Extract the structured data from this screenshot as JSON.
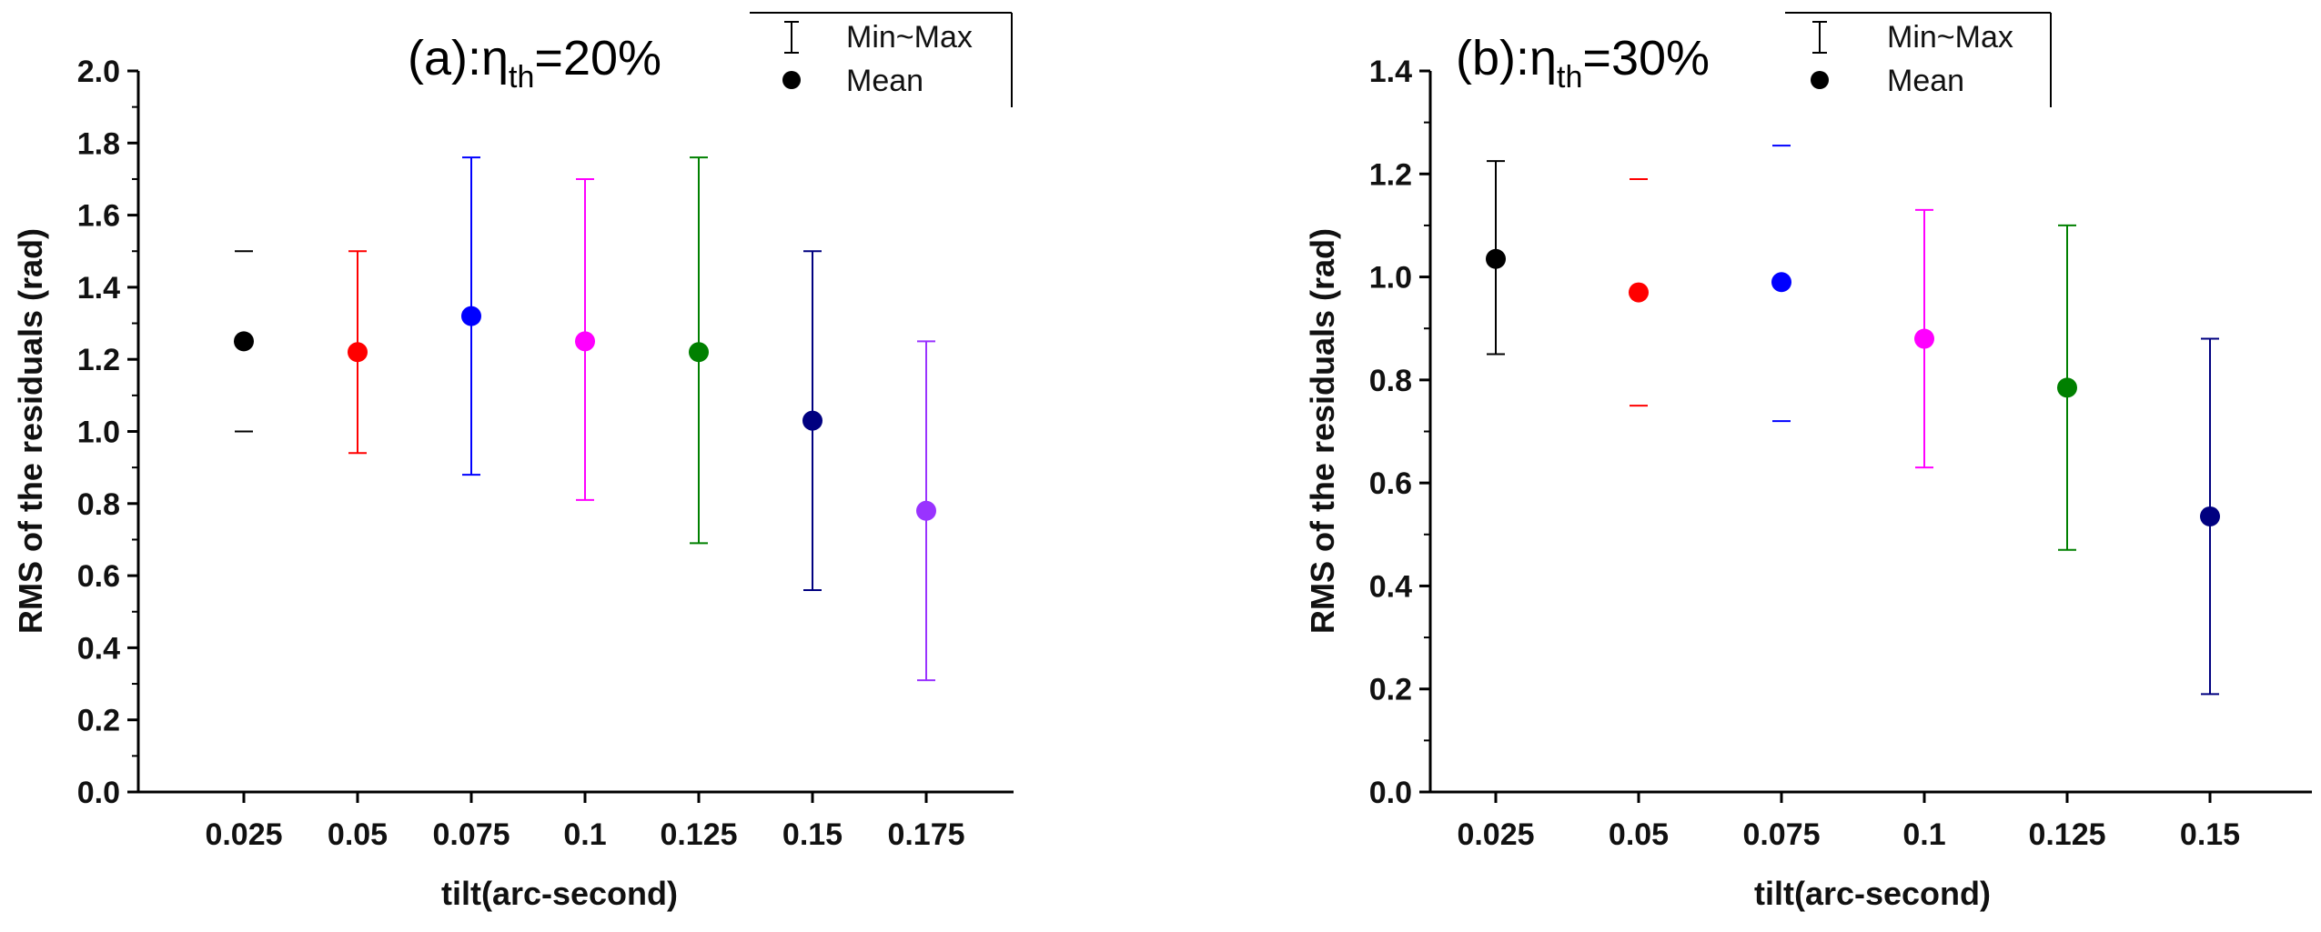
{
  "chart_data": [
    {
      "type": "scatter",
      "title_prefix": "(a):η",
      "title_sub": "th",
      "title_suffix": "=20%",
      "xlabel": "tilt(arc-second)",
      "ylabel": "RMS of the residuals (rad)",
      "categories": [
        "0.025",
        "0.05",
        "0.075",
        "0.1",
        "0.125",
        "0.15",
        "0.175"
      ],
      "ylim": [
        0,
        2.0
      ],
      "yticks": [
        "0.0",
        "0.2",
        "0.4",
        "0.6",
        "0.8",
        "1.0",
        "1.2",
        "1.4",
        "1.6",
        "1.8",
        "2.0"
      ],
      "legend": {
        "range_label": "Min~Max",
        "mean_label": "Mean",
        "position": "top-right"
      },
      "points": [
        {
          "x": "0.025",
          "mean": 1.25,
          "min": 1.0,
          "max": 1.5,
          "color": "#000000",
          "capsOnly": true
        },
        {
          "x": "0.05",
          "mean": 1.22,
          "min": 0.94,
          "max": 1.5,
          "color": "#ff0000",
          "capsOnly": false
        },
        {
          "x": "0.075",
          "mean": 1.32,
          "min": 0.88,
          "max": 1.76,
          "color": "#0000ff",
          "capsOnly": false
        },
        {
          "x": "0.1",
          "mean": 1.25,
          "min": 0.81,
          "max": 1.7,
          "color": "#ff00ff",
          "capsOnly": false
        },
        {
          "x": "0.125",
          "mean": 1.22,
          "min": 0.69,
          "max": 1.76,
          "color": "#008000",
          "capsOnly": false
        },
        {
          "x": "0.15",
          "mean": 1.03,
          "min": 0.56,
          "max": 1.5,
          "color": "#000080",
          "capsOnly": false
        },
        {
          "x": "0.175",
          "mean": 0.78,
          "min": 0.31,
          "max": 1.25,
          "color": "#9933ff",
          "capsOnly": false
        }
      ]
    },
    {
      "type": "scatter",
      "title_prefix": "(b):η",
      "title_sub": "th",
      "title_suffix": "=30%",
      "xlabel": "tilt(arc-second)",
      "ylabel": "RMS of the residuals (rad)",
      "categories": [
        "0.025",
        "0.05",
        "0.075",
        "0.1",
        "0.125",
        "0.15"
      ],
      "ylim": [
        0,
        1.4
      ],
      "yticks": [
        "0.0",
        "0.2",
        "0.4",
        "0.6",
        "0.8",
        "1.0",
        "1.2",
        "1.4"
      ],
      "legend": {
        "range_label": "Min~Max",
        "mean_label": "Mean",
        "position": "top-right"
      },
      "points": [
        {
          "x": "0.025",
          "mean": 1.035,
          "min": 0.85,
          "max": 1.225,
          "color": "#000000",
          "capsOnly": false
        },
        {
          "x": "0.05",
          "mean": 0.97,
          "min": 0.75,
          "max": 1.19,
          "color": "#ff0000",
          "capsOnly": true
        },
        {
          "x": "0.075",
          "mean": 0.99,
          "min": 0.72,
          "max": 1.255,
          "color": "#0000ff",
          "capsOnly": true
        },
        {
          "x": "0.1",
          "mean": 0.88,
          "min": 0.63,
          "max": 1.13,
          "color": "#ff00ff",
          "capsOnly": false
        },
        {
          "x": "0.125",
          "mean": 0.785,
          "min": 0.47,
          "max": 1.1,
          "color": "#008000",
          "capsOnly": false
        },
        {
          "x": "0.15",
          "mean": 0.535,
          "min": 0.19,
          "max": 0.88,
          "color": "#000080",
          "capsOnly": false
        }
      ]
    }
  ]
}
